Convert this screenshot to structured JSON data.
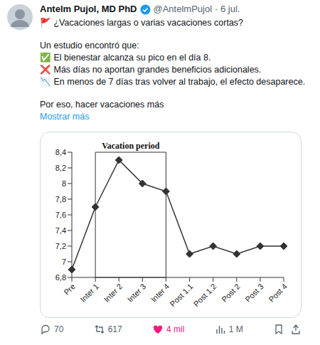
{
  "header": {
    "name": "Antelm Pujol, MD PhD",
    "handle": "@AntelmPujol",
    "date": "· 6 jul."
  },
  "body": {
    "paragraphs": [
      [
        "🚩 ¿Vacaciones largas o varias vacaciones cortas?"
      ],
      [
        "Un estudio encontró que:",
        "✅ El bienestar alcanza su pico en el día 8.",
        "❌ Más días no aportan grandes beneficios adicionales.",
        "📉 En menos de 7 días tras volver al trabajo, el efecto desaparece."
      ],
      [
        "Por eso, hacer vacaciones más"
      ]
    ],
    "more": "Mostrar más"
  },
  "chart_data": {
    "type": "line",
    "categories": [
      "Pre",
      "Inter 1",
      "Inter 2",
      "Inter 3",
      "Inter 4",
      "Post 1.1",
      "Post 1.2",
      "Post 2",
      "Post 3",
      "Post 4"
    ],
    "values": [
      6.9,
      7.7,
      8.3,
      8.0,
      7.9,
      7.1,
      7.2,
      7.1,
      7.2,
      7.2
    ],
    "color": "#333333",
    "marker": "diamond",
    "ylim": [
      6.8,
      8.4
    ],
    "yticks": [
      {
        "value": 6.8,
        "label": "6,8"
      },
      7,
      {
        "value": 7.2,
        "label": "7,2"
      },
      {
        "value": 7.4,
        "label": "7,4"
      },
      {
        "value": 7.6,
        "label": "7,6"
      },
      {
        "value": 7.8,
        "label": "7,8"
      },
      8,
      {
        "value": 8.2,
        "label": "8,2"
      },
      {
        "value": 8.4,
        "label": "8,4"
      }
    ],
    "grid": false,
    "annotations": [
      {
        "text": "Vacation period",
        "x1": "Inter 1",
        "x2": "Inter 4"
      }
    ]
  },
  "footer": {
    "replies": "70",
    "reposts": "617",
    "likes": "4 mil",
    "views": "1 M"
  }
}
